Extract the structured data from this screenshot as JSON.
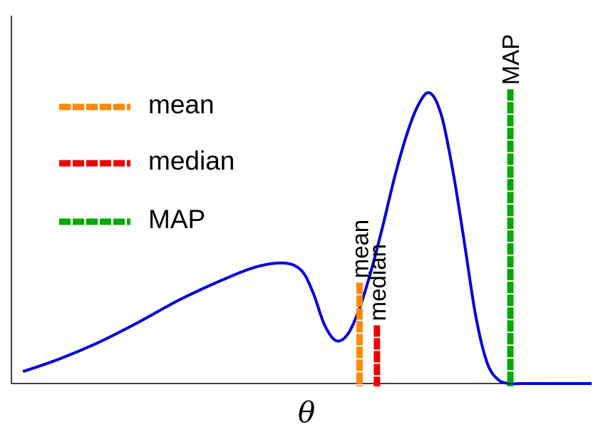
{
  "chart_data": {
    "type": "line",
    "title": "",
    "xlabel": "θ",
    "ylabel": "",
    "xlim": [
      0,
      1
    ],
    "ylim": [
      0,
      1
    ],
    "ticks_shown": false,
    "grid": false,
    "legend_position": "top-left",
    "series": [
      {
        "color": "#0000dd",
        "x": [
          0.02,
          0.08,
          0.15,
          0.22,
          0.29,
          0.36,
          0.42,
          0.47,
          0.5,
          0.52,
          0.54,
          0.56,
          0.58,
          0.6,
          0.62,
          0.64,
          0.66,
          0.68,
          0.7,
          0.72,
          0.74,
          0.76,
          0.78,
          0.8,
          0.82,
          0.84,
          0.86,
          0.88,
          0.9,
          0.92,
          0.94,
          0.96,
          0.98,
          1.0
        ],
        "y": [
          0.035,
          0.07,
          0.12,
          0.18,
          0.245,
          0.3,
          0.34,
          0.352,
          0.33,
          0.265,
          0.17,
          0.125,
          0.145,
          0.22,
          0.33,
          0.46,
          0.6,
          0.72,
          0.81,
          0.85,
          0.79,
          0.63,
          0.42,
          0.2,
          0.06,
          0.01,
          0.0,
          0.0,
          0.0,
          0.0,
          0.0,
          0.0,
          0.0,
          0.0
        ]
      }
    ],
    "markers": [
      {
        "key": "mean",
        "label": "mean",
        "x": 0.6,
        "y": 0.295,
        "color": "#ff8800"
      },
      {
        "key": "median",
        "label": "median",
        "x": 0.63,
        "y": 0.17,
        "color": "#ee0000"
      },
      {
        "key": "map",
        "label": "MAP",
        "x": 0.86,
        "y": 0.86,
        "color": "#00aa00"
      }
    ],
    "legend": [
      {
        "label": "mean",
        "color": "#ff8800"
      },
      {
        "label": "median",
        "color": "#ee0000"
      },
      {
        "label": "MAP",
        "color": "#00aa00"
      }
    ]
  }
}
